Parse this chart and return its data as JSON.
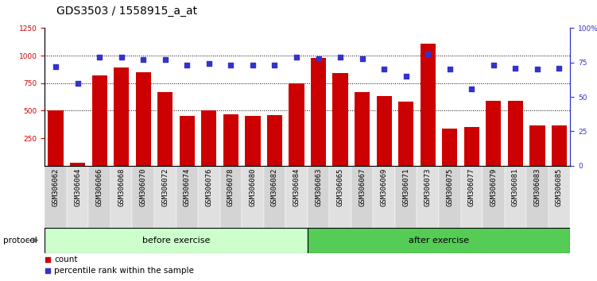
{
  "title": "GDS3503 / 1558915_a_at",
  "samples": [
    "GSM306062",
    "GSM306064",
    "GSM306066",
    "GSM306068",
    "GSM306070",
    "GSM306072",
    "GSM306074",
    "GSM306076",
    "GSM306078",
    "GSM306080",
    "GSM306082",
    "GSM306084",
    "GSM306063",
    "GSM306065",
    "GSM306067",
    "GSM306069",
    "GSM306071",
    "GSM306073",
    "GSM306075",
    "GSM306077",
    "GSM306079",
    "GSM306081",
    "GSM306083",
    "GSM306085"
  ],
  "count_values": [
    500,
    30,
    820,
    890,
    850,
    670,
    450,
    500,
    465,
    450,
    460,
    750,
    980,
    845,
    670,
    630,
    580,
    1110,
    335,
    350,
    590,
    590,
    370,
    365
  ],
  "percentile_values": [
    72,
    60,
    79,
    79,
    77,
    77,
    73,
    74,
    73,
    73,
    73,
    79,
    78,
    79,
    78,
    70,
    65,
    81,
    70,
    56,
    73,
    71,
    70,
    71
  ],
  "before_count": 12,
  "after_count": 12,
  "before_label": "before exercise",
  "after_label": "after exercise",
  "protocol_label": "protocol",
  "ylim_left": [
    0,
    1250
  ],
  "ylim_right": [
    0,
    100
  ],
  "yticks_left": [
    250,
    500,
    750,
    1000,
    1250
  ],
  "yticks_right": [
    0,
    25,
    50,
    75,
    100
  ],
  "bar_color": "#cc0000",
  "dot_color": "#3333cc",
  "before_bg": "#ccffcc",
  "after_bg": "#55cc55",
  "title_fontsize": 10,
  "tick_fontsize": 6.5,
  "label_fontsize": 8,
  "legend_fontsize": 7.5
}
